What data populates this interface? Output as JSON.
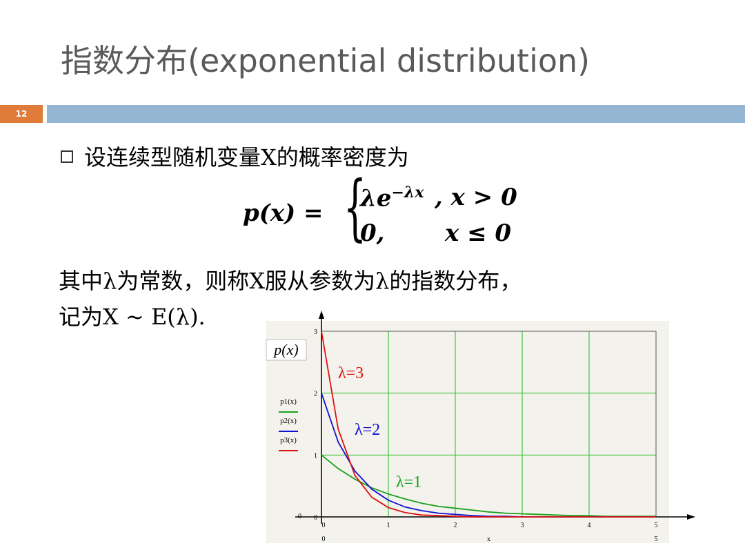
{
  "header": {
    "title": "指数分布(exponential distribution)",
    "page_number": "12"
  },
  "body": {
    "bullet": "设连续型随机变量X的概率密度为",
    "formula": {
      "lhs": "p(x) =",
      "rows": [
        {
          "expr": "λe",
          "exponent": "−λx",
          "cond": ", x > 0"
        },
        {
          "expr": "0,",
          "cond": "x ≤ 0"
        }
      ]
    },
    "lines": [
      "其中λ为常数，则称X服从参数为λ的指数分布，",
      "记为X ~ E(λ)."
    ]
  },
  "chart_data": {
    "type": "line",
    "y_label": "p(x)",
    "x_label": "x",
    "x_range_labels": [
      "0",
      "5"
    ],
    "y_range_label": "0",
    "x": [
      0,
      0.25,
      0.5,
      0.75,
      1,
      1.25,
      1.5,
      1.75,
      2,
      2.25,
      2.5,
      2.75,
      3,
      3.25,
      3.5,
      3.75,
      4,
      4.25,
      4.5,
      4.75,
      5
    ],
    "series": [
      {
        "name": "p1(x)",
        "color": "#1aa01a",
        "values": [
          1,
          0.78,
          0.61,
          0.47,
          0.37,
          0.29,
          0.22,
          0.17,
          0.14,
          0.11,
          0.08,
          0.06,
          0.05,
          0.04,
          0.03,
          0.02,
          0.02,
          0.01,
          0.01,
          0.01,
          0.01
        ]
      },
      {
        "name": "p2(x)",
        "color": "#1010d0",
        "values": [
          2,
          1.21,
          0.74,
          0.45,
          0.27,
          0.16,
          0.1,
          0.06,
          0.04,
          0.02,
          0.01,
          0.01,
          0,
          0,
          0,
          0,
          0,
          0,
          0,
          0,
          0
        ]
      },
      {
        "name": "p3(x)",
        "color": "#e01010",
        "values": [
          3,
          1.42,
          0.67,
          0.32,
          0.15,
          0.07,
          0.03,
          0.02,
          0.01,
          0,
          0,
          0,
          0,
          0,
          0,
          0,
          0,
          0,
          0,
          0,
          0
        ]
      }
    ],
    "annotations": [
      "λ=3",
      "λ=2",
      "λ=1"
    ],
    "xlim": [
      0,
      5
    ],
    "ylim": [
      0,
      3
    ],
    "xticks": [
      0,
      1,
      2,
      3,
      4,
      5
    ],
    "yticks": [
      0,
      1,
      2,
      3
    ],
    "grid": true
  }
}
